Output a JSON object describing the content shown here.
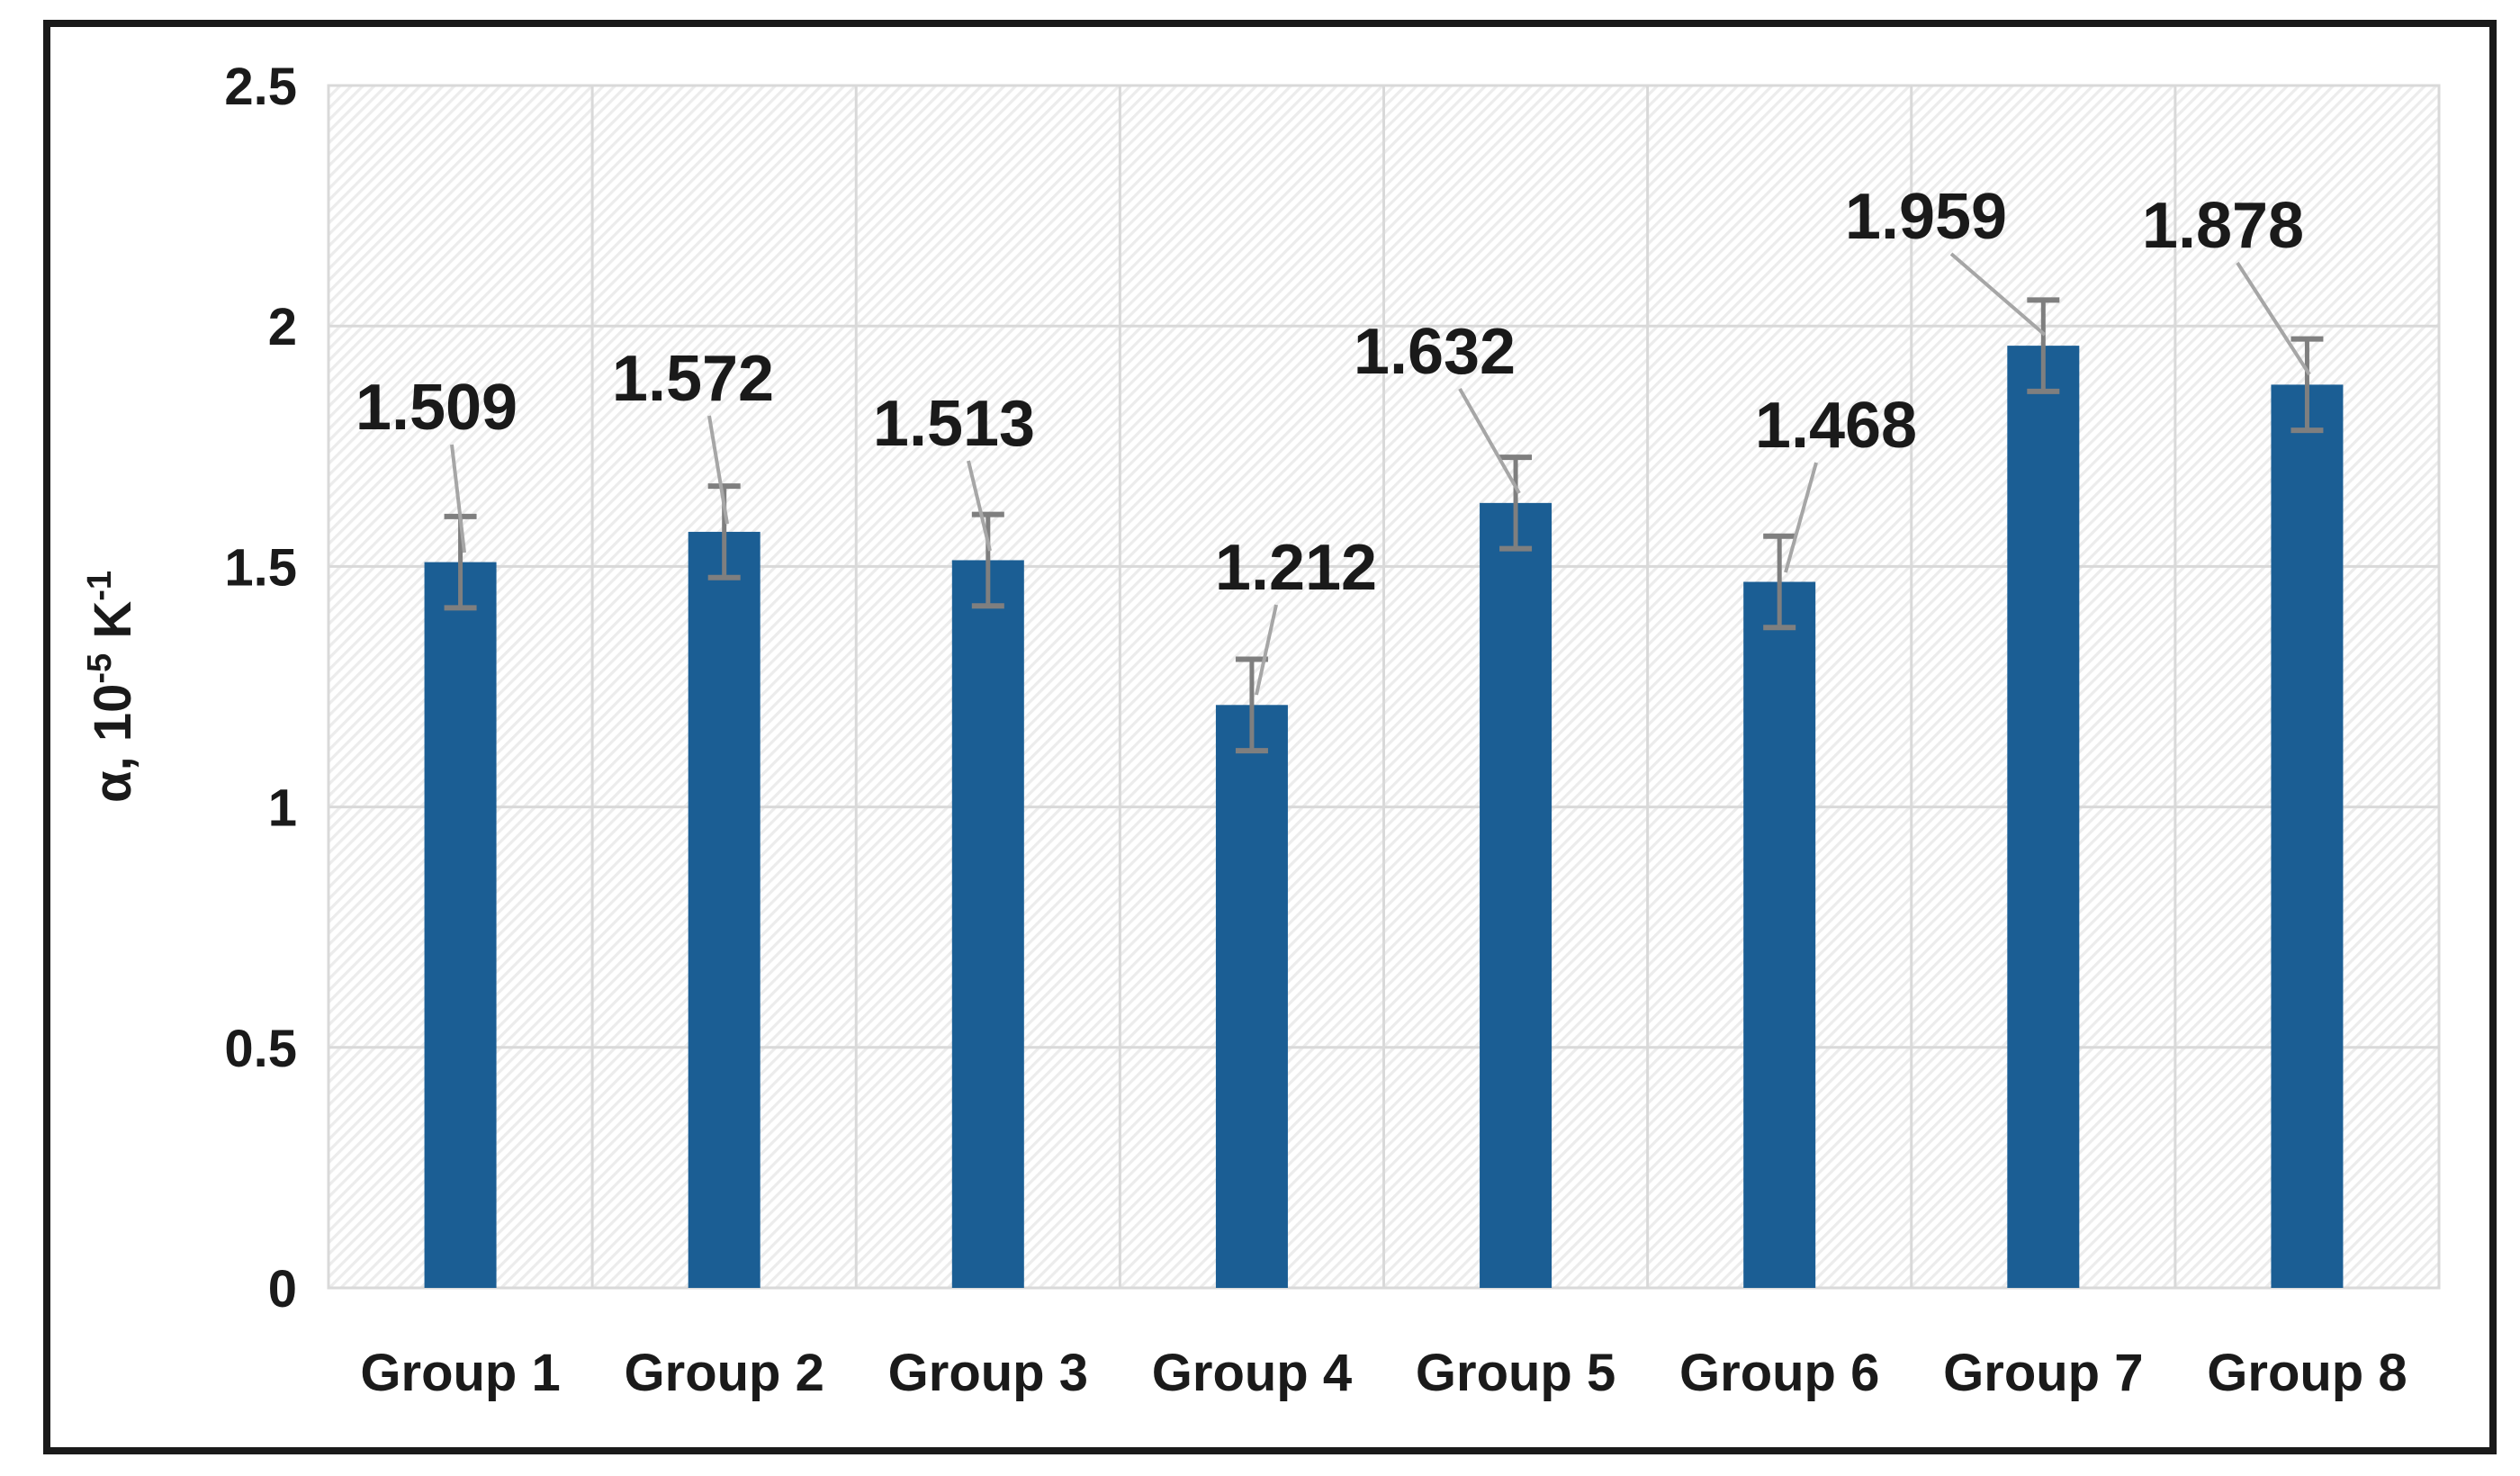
{
  "chart_data": {
    "type": "bar",
    "title": "",
    "categories": [
      "Group 1",
      "Group 2",
      "Group 3",
      "Group 4",
      "Group 5",
      "Group 6",
      "Group 7",
      "Group 8"
    ],
    "series": [
      {
        "name": "alpha",
        "values": [
          1.509,
          1.572,
          1.513,
          1.212,
          1.632,
          1.468,
          1.959,
          1.878
        ]
      }
    ],
    "data_labels": [
      "1.509",
      "1.572",
      "1.513",
      "1.212",
      "1.632",
      "1.468",
      "1.959",
      "1.878"
    ],
    "error_bar_plus": 0.095,
    "error_bar_minus": 0.095,
    "xlabel": "",
    "ylabel": "α, 10⁻⁵ K⁻¹",
    "ylabel_parts": [
      {
        "text": "α, 10",
        "superscript": false
      },
      {
        "text": "-5",
        "superscript": true
      },
      {
        "text": " K",
        "superscript": false
      },
      {
        "text": "-1",
        "superscript": true
      }
    ],
    "ylim": [
      0,
      2.5
    ],
    "ytick_values": [
      0,
      0.5,
      1,
      1.5,
      2,
      2.5
    ],
    "ytick_labels": [
      "0",
      "0.5",
      "1",
      "1.5",
      "2",
      "2.5"
    ],
    "grid": true,
    "legend_position": "none",
    "plot_background": "diagonal-hatch"
  },
  "colors": {
    "bar": "#1b5e94",
    "error_bar": "#7f7f7f",
    "leader_line": "#a6a6a6",
    "gridline": "#d9d9d9",
    "plot_border": "#d9d9d9",
    "hatch_line": "#ececec",
    "plot_bg": "#ffffff",
    "text": "#1a1a1a",
    "outer_border": "#1a1a1a"
  }
}
